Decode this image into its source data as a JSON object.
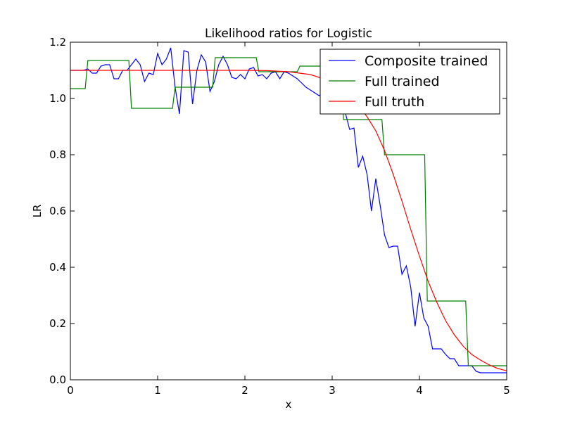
{
  "chart_data": {
    "type": "line",
    "title": "Likelihood ratios for Logistic",
    "xlabel": "x",
    "ylabel": "LR",
    "xlim": [
      0,
      5
    ],
    "ylim": [
      0,
      1.2
    ],
    "xticks": [
      "0",
      "1",
      "2",
      "3",
      "4",
      "5"
    ],
    "yticks": [
      "0.0",
      "0.2",
      "0.4",
      "0.6",
      "0.8",
      "1.0",
      "1.2"
    ],
    "legend_position": "top-right",
    "grid": false,
    "series": [
      {
        "name": "Composite trained",
        "color": "#0000ff",
        "x": [
          0,
          0.05,
          0.1,
          0.15,
          0.2,
          0.25,
          0.3,
          0.35,
          0.4,
          0.45,
          0.5,
          0.55,
          0.6,
          0.65,
          0.7,
          0.75,
          0.8,
          0.85,
          0.9,
          0.95,
          1.0,
          1.05,
          1.1,
          1.15,
          1.2,
          1.25,
          1.3,
          1.35,
          1.4,
          1.45,
          1.5,
          1.55,
          1.6,
          1.65,
          1.7,
          1.75,
          1.8,
          1.85,
          1.9,
          1.95,
          2.0,
          2.05,
          2.1,
          2.15,
          2.2,
          2.25,
          2.3,
          2.35,
          2.4,
          2.45,
          2.5,
          2.55,
          2.6,
          2.65,
          2.7,
          2.75,
          2.8,
          2.85,
          2.9,
          2.95,
          3.0,
          3.05,
          3.1,
          3.15,
          3.2,
          3.25,
          3.3,
          3.35,
          3.4,
          3.45,
          3.5,
          3.55,
          3.6,
          3.65,
          3.7,
          3.75,
          3.8,
          3.85,
          3.9,
          3.95,
          4.0,
          4.05,
          4.1,
          4.15,
          4.2,
          4.25,
          4.3,
          4.35,
          4.4,
          4.45,
          4.5,
          4.55,
          4.6,
          4.65,
          4.7,
          4.75,
          4.8,
          4.85,
          4.9,
          4.95,
          5.0
        ],
        "y": [
          1.1,
          1.1,
          1.1,
          1.1,
          1.105,
          1.09,
          1.09,
          1.115,
          1.12,
          1.12,
          1.07,
          1.07,
          1.1,
          1.1,
          1.12,
          1.14,
          1.12,
          1.06,
          1.09,
          1.085,
          1.16,
          1.12,
          1.14,
          1.18,
          1.04,
          0.945,
          1.17,
          1.165,
          0.98,
          1.1,
          1.155,
          1.13,
          1.025,
          1.06,
          1.12,
          1.15,
          1.12,
          1.075,
          1.07,
          1.085,
          1.07,
          1.105,
          1.11,
          1.08,
          1.085,
          1.07,
          1.09,
          1.095,
          1.07,
          1.095,
          1.09,
          1.08,
          1.07,
          1.055,
          1.04,
          1.03,
          1.02,
          1.01,
          1.02,
          1.01,
          1.0,
          0.98,
          0.97,
          0.95,
          0.89,
          0.895,
          0.755,
          0.795,
          0.73,
          0.6,
          0.715,
          0.62,
          0.515,
          0.47,
          0.475,
          0.475,
          0.375,
          0.405,
          0.33,
          0.19,
          0.31,
          0.22,
          0.19,
          0.11,
          0.11,
          0.11,
          0.09,
          0.075,
          0.075,
          0.05,
          0.05,
          0.05,
          0.05,
          0.03,
          0.025,
          0.025,
          0.025,
          0.025,
          0.025,
          0.025,
          0.025
        ]
      },
      {
        "name": "Full trained",
        "color": "#008000",
        "x": [
          0,
          0.17,
          0.2,
          0.67,
          0.7,
          1.17,
          1.2,
          1.63,
          1.66,
          2.13,
          2.16,
          2.6,
          2.63,
          3.1,
          3.13,
          3.57,
          3.6,
          4.06,
          4.09,
          4.53,
          4.56,
          5.0
        ],
        "y": [
          1.035,
          1.035,
          1.135,
          1.135,
          0.965,
          0.965,
          1.04,
          1.04,
          1.145,
          1.145,
          1.095,
          1.095,
          1.115,
          1.115,
          0.925,
          0.925,
          0.8,
          0.8,
          0.28,
          0.28,
          0.05,
          0.05
        ]
      },
      {
        "name": "Full truth",
        "color": "#ff0000",
        "x": [
          0,
          0.25,
          0.5,
          0.75,
          1.0,
          1.25,
          1.5,
          1.75,
          2.0,
          2.25,
          2.5,
          2.75,
          3.0,
          3.1,
          3.2,
          3.3,
          3.4,
          3.5,
          3.6,
          3.7,
          3.8,
          3.9,
          4.0,
          4.1,
          4.2,
          4.3,
          4.4,
          4.5,
          4.6,
          4.7,
          4.8,
          4.9,
          5.0
        ],
        "y": [
          1.1,
          1.1,
          1.1,
          1.1,
          1.1,
          1.1,
          1.1,
          1.1,
          1.1,
          1.099,
          1.095,
          1.085,
          1.06,
          1.04,
          1.01,
          0.975,
          0.935,
          0.885,
          0.815,
          0.73,
          0.635,
          0.535,
          0.44,
          0.35,
          0.275,
          0.21,
          0.16,
          0.12,
          0.09,
          0.07,
          0.053,
          0.04,
          0.032
        ]
      }
    ]
  }
}
